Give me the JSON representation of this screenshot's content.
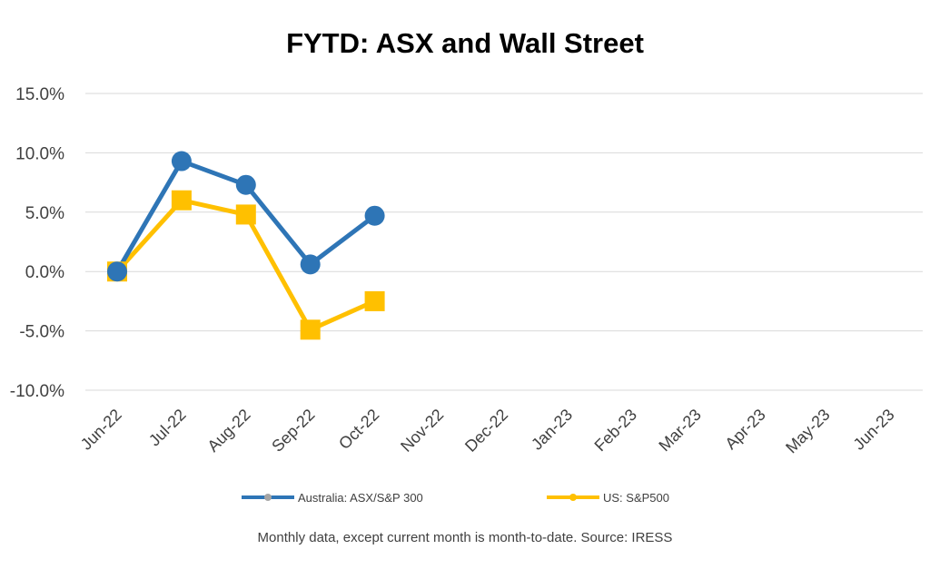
{
  "chart_data": {
    "type": "line",
    "title": "FYTD: ASX and Wall Street",
    "categories": [
      "Jun-22",
      "Jul-22",
      "Aug-22",
      "Sep-22",
      "Oct-22",
      "Nov-22",
      "Dec-22",
      "Jan-23",
      "Feb-23",
      "Mar-23",
      "Apr-23",
      "May-23",
      "Jun-23"
    ],
    "y_ticks": [
      "15.0%",
      "10.0%",
      "5.0%",
      "0.0%",
      "-5.0%",
      "-10.0%"
    ],
    "ylim": [
      -10,
      15
    ],
    "y_unit": "%",
    "grid": true,
    "legend_position": "bottom",
    "series": [
      {
        "name": "Australia: ASX/S&P 300",
        "color": "#2e75b6",
        "marker": "circle",
        "values": [
          0.0,
          9.3,
          7.3,
          0.6,
          4.7,
          null,
          null,
          null,
          null,
          null,
          null,
          null,
          null
        ]
      },
      {
        "name": "US: S&P500",
        "color": "#ffc000",
        "marker": "square",
        "values": [
          0.0,
          6.0,
          4.8,
          -4.9,
          -2.5,
          null,
          null,
          null,
          null,
          null,
          null,
          null,
          null
        ]
      }
    ],
    "note": "Monthly data, except current month is month-to-date.  Source: IRESS"
  }
}
